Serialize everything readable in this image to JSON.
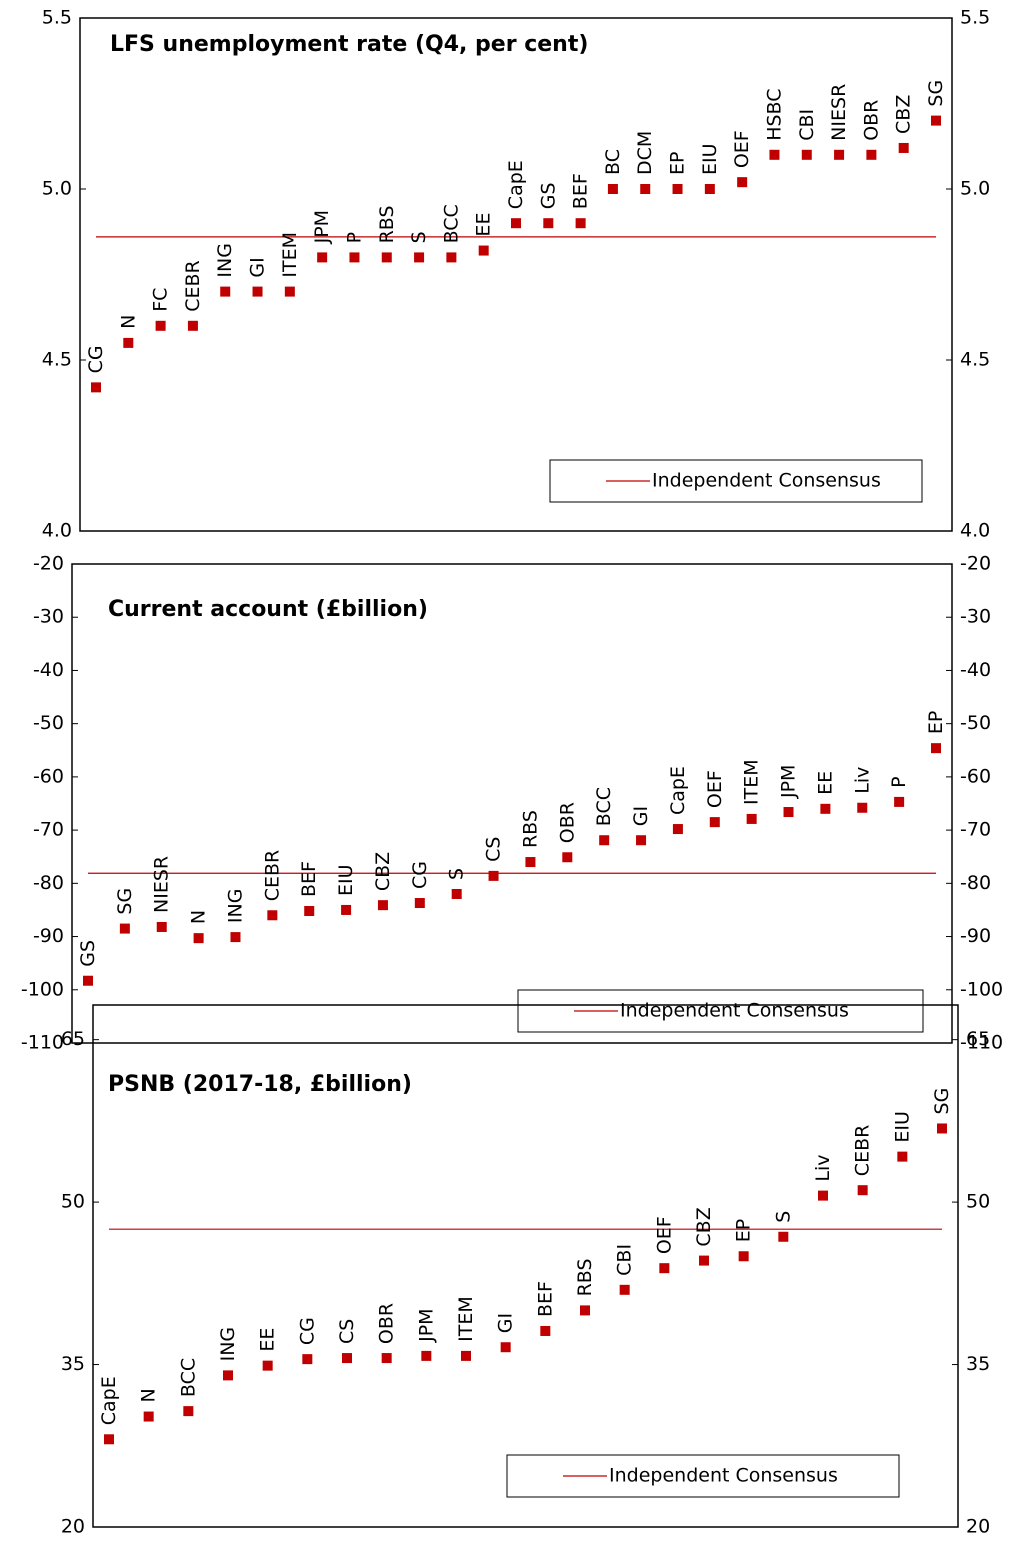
{
  "chart_data": [
    {
      "type": "dot",
      "title": "LFS unemployment rate (Q4, per cent)",
      "categories": [
        "CG",
        "N",
        "FC",
        "CEBR",
        "ING",
        "GI",
        "ITEM",
        "JPM",
        "P",
        "RBS",
        "S",
        "BCC",
        "EE",
        "CapE",
        "GS",
        "BEF",
        "BC",
        "DCM",
        "EP",
        "EIU",
        "OEF",
        "HSBC",
        "CBI",
        "NIESR",
        "OBR",
        "CBZ",
        "SG"
      ],
      "values": [
        4.42,
        4.55,
        4.6,
        4.6,
        4.7,
        4.7,
        4.7,
        4.8,
        4.8,
        4.8,
        4.8,
        4.8,
        4.82,
        4.9,
        4.9,
        4.9,
        5.0,
        5.0,
        5.0,
        5.0,
        5.02,
        5.1,
        5.1,
        5.1,
        5.1,
        5.12,
        5.2
      ],
      "color": "#c00000",
      "reference": {
        "name": "Independent Consensus",
        "value": 4.86,
        "color": "#c00000"
      },
      "ylim": [
        4.0,
        5.5
      ],
      "yticks": [
        {
          "value": 4.0,
          "label": "4.0"
        },
        4.5,
        {
          "value": 5.0,
          "label": "5.0"
        },
        5.5
      ],
      "legend": "bottom-right"
    },
    {
      "type": "dot",
      "title": "Current account (£billion)",
      "categories": [
        "GS",
        "SG",
        "NIESR",
        "N",
        "ING",
        "CEBR",
        "BEF",
        "EIU",
        "CBZ",
        "CG",
        "S",
        "CS",
        "RBS",
        "OBR",
        "BCC",
        "GI",
        "CapE",
        "OEF",
        "ITEM",
        "JPM",
        "EE",
        "Liv",
        "P",
        "EP"
      ],
      "values": [
        -98.3,
        -88.5,
        -88.2,
        -90.3,
        -90.1,
        -86.0,
        -85.2,
        -85.0,
        -84.1,
        -83.7,
        -82.0,
        -78.6,
        -76.0,
        -75.1,
        -71.9,
        -71.9,
        -69.8,
        -68.5,
        -67.9,
        -66.6,
        -66.0,
        -65.8,
        -64.7,
        -54.6
      ],
      "color": "#c00000",
      "reference": {
        "name": "Independent Consensus",
        "value": -78.1,
        "color": "#c00000"
      },
      "ylim": [
        -110,
        -20
      ],
      "yticks": [
        -110,
        -100,
        -90,
        -80,
        -70,
        -60,
        -50,
        -40,
        -30,
        -20
      ],
      "legend": "bottom-right"
    },
    {
      "type": "dot",
      "title": "PSNB (2017-18, £billion)",
      "categories": [
        "CapE",
        "N",
        "BCC",
        "ING",
        "EE",
        "CG",
        "CS",
        "OBR",
        "JPM",
        "ITEM",
        "GI",
        "BEF",
        "RBS",
        "CBI",
        "OEF",
        "CBZ",
        "EP",
        "S",
        "Liv",
        "CEBR",
        "EIU",
        "SG"
      ],
      "values": [
        28.1,
        30.2,
        30.7,
        34.0,
        34.9,
        35.5,
        35.6,
        35.6,
        35.8,
        35.8,
        36.6,
        38.1,
        40.0,
        41.9,
        43.9,
        44.6,
        45.0,
        46.8,
        50.6,
        51.1,
        54.2,
        56.8
      ],
      "color": "#c00000",
      "reference": {
        "name": "Independent Consensus",
        "value": 47.5,
        "color": "#c00000"
      },
      "ylim": [
        20,
        68.2
      ],
      "yticks": [
        20,
        35,
        50,
        65
      ],
      "legend": "bottom-right"
    }
  ]
}
